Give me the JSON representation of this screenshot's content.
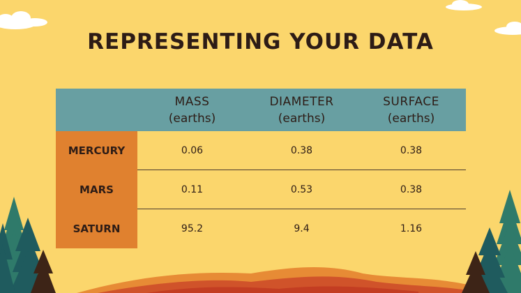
{
  "title": "REPRESENTING YOUR DATA",
  "columns": [
    {
      "name": "MASS",
      "unit": "(earths)"
    },
    {
      "name": "DIAMETER",
      "unit": "(earths)"
    },
    {
      "name": "SURFACE",
      "unit": "(earths)"
    }
  ],
  "rows": [
    {
      "label": "MERCURY",
      "values": [
        "0.06",
        "0.38",
        "0.38"
      ]
    },
    {
      "label": "MARS",
      "values": [
        "0.11",
        "0.53",
        "0.38"
      ]
    },
    {
      "label": "SATURN",
      "values": [
        "95.2",
        "9.4",
        "1.16"
      ]
    }
  ],
  "colors": {
    "background": "#fbd66c",
    "header": "#689fa2",
    "row_header": "#e0812f",
    "text": "#2d1c16",
    "hills": [
      "#e78b35",
      "#d0532a",
      "#c33d22"
    ],
    "trees": [
      "#1f5b5e",
      "#2f7a6a",
      "#3d2417"
    ]
  }
}
